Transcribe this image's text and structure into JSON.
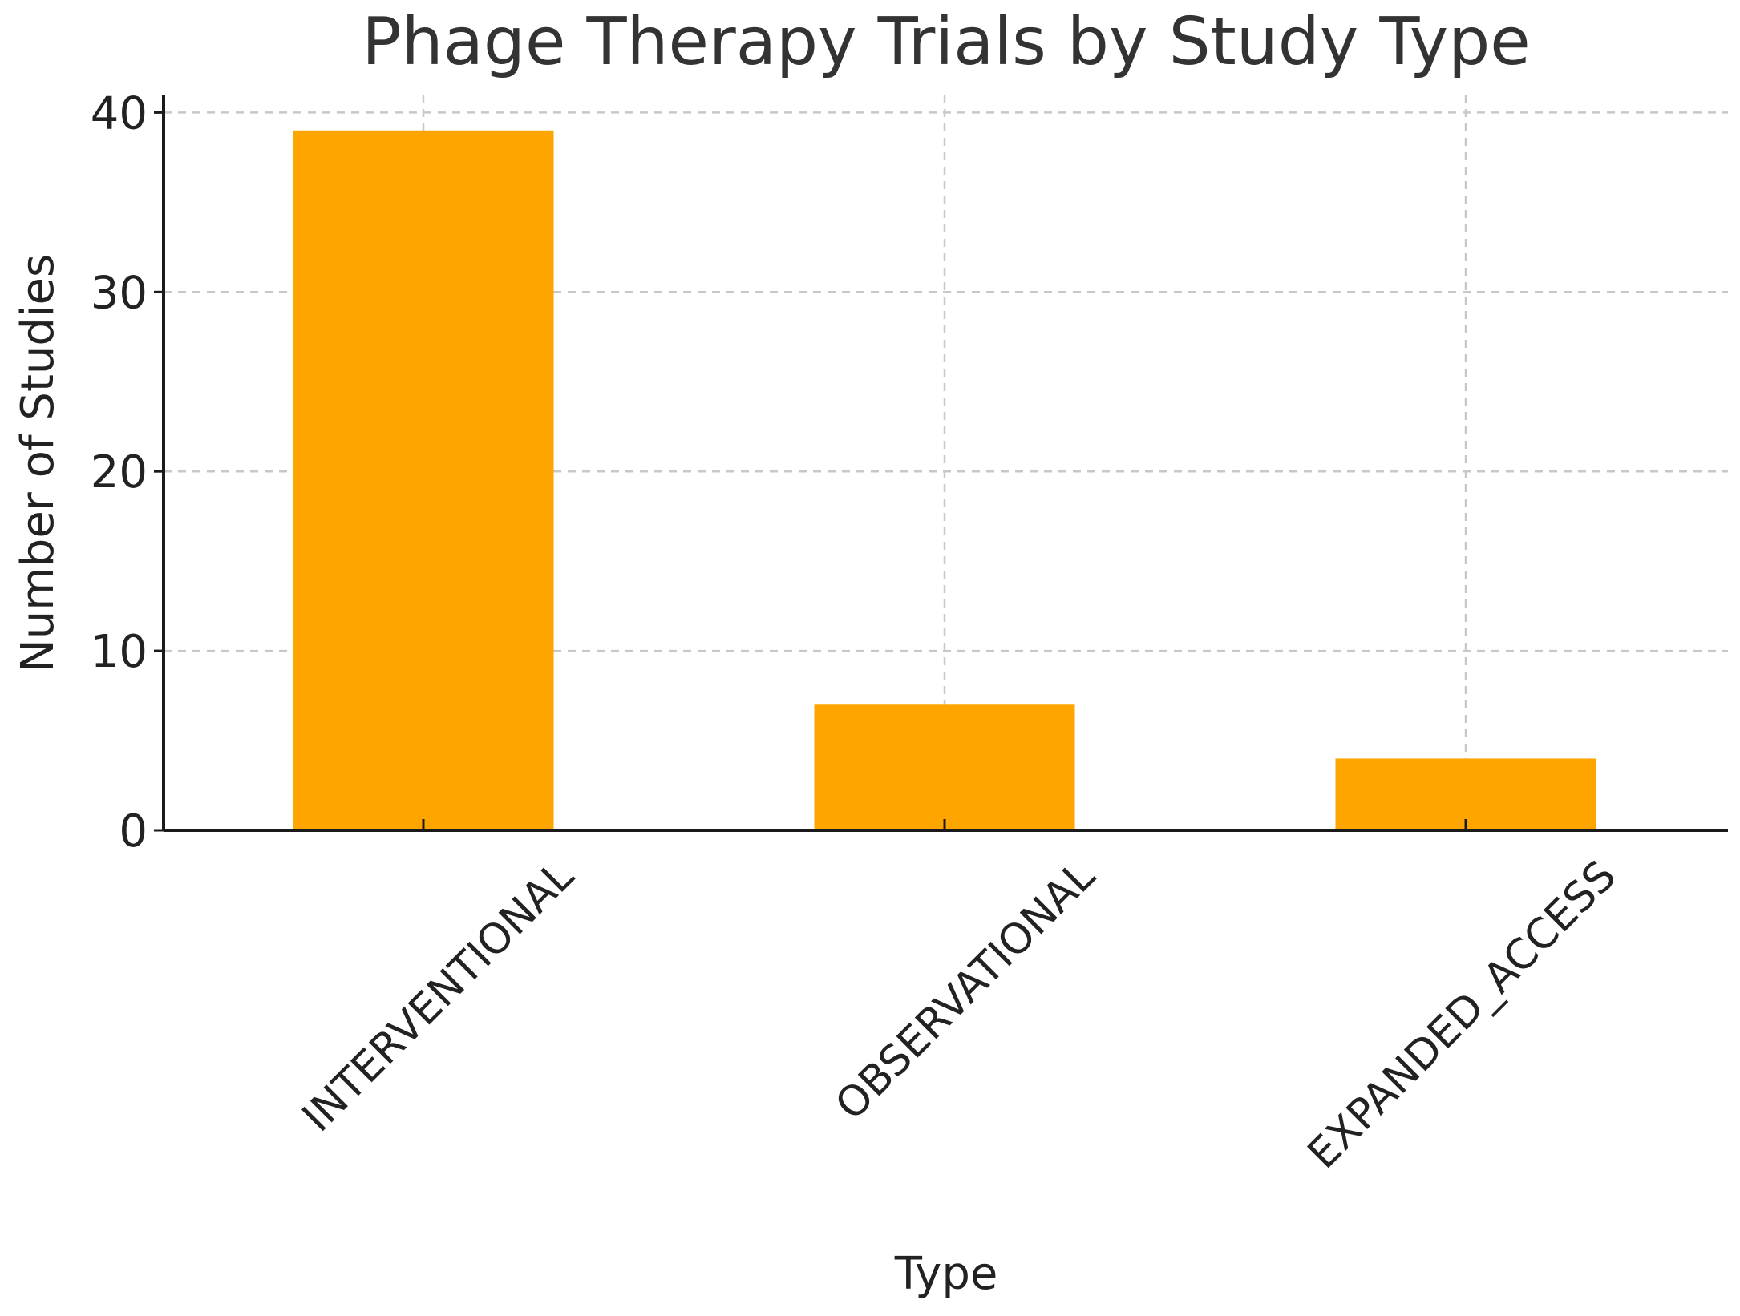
{
  "chart_data": {
    "type": "bar",
    "title": "Phage Therapy Trials by Study Type",
    "xlabel": "Type",
    "ylabel": "Number of Studies",
    "categories": [
      "INTERVENTIONAL",
      "OBSERVATIONAL",
      "EXPANDED_ACCESS"
    ],
    "values": [
      39,
      7,
      4
    ],
    "ylim": [
      0,
      41
    ],
    "yticks": [
      0,
      10,
      20,
      30,
      40
    ],
    "grid": true,
    "bar_color": "#FFA500"
  }
}
